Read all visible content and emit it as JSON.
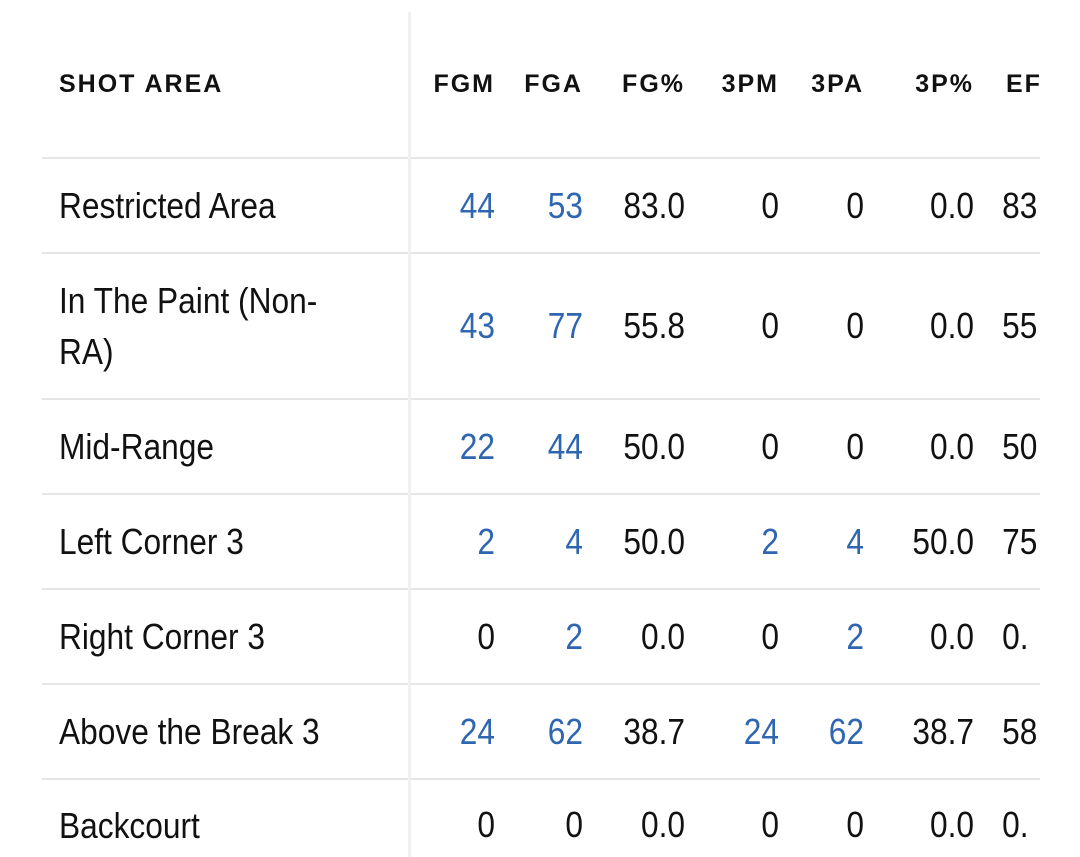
{
  "table": {
    "headers": {
      "area": "SHOT AREA",
      "fgm": "FGM",
      "fga": "FGA",
      "fgp": "FG%",
      "tpm": "3PM",
      "tpa": "3PA",
      "tpp": "3P%",
      "efg": "EFG"
    },
    "rows": [
      {
        "area": "Restricted Area",
        "fgm": "44",
        "fga": "53",
        "fgp": "83.0",
        "tpm": "0",
        "tpa": "0",
        "tpp": "0.0",
        "efg": "83."
      },
      {
        "area": "In The Paint (Non-RA)",
        "fgm": "43",
        "fga": "77",
        "fgp": "55.8",
        "tpm": "0",
        "tpa": "0",
        "tpp": "0.0",
        "efg": "55."
      },
      {
        "area": "Mid-Range",
        "fgm": "22",
        "fga": "44",
        "fgp": "50.0",
        "tpm": "0",
        "tpa": "0",
        "tpp": "0.0",
        "efg": "50."
      },
      {
        "area": "Left Corner 3",
        "fgm": "2",
        "fga": "4",
        "fgp": "50.0",
        "tpm": "2",
        "tpa": "4",
        "tpp": "50.0",
        "efg": "75."
      },
      {
        "area": "Right Corner 3",
        "fgm": "0",
        "fga": "2",
        "fgp": "0.0",
        "tpm": "0",
        "tpa": "2",
        "tpp": "0.0",
        "efg": "0."
      },
      {
        "area": "Above the Break 3",
        "fgm": "24",
        "fga": "62",
        "fgp": "38.7",
        "tpm": "24",
        "tpa": "62",
        "tpp": "38.7",
        "efg": "58."
      },
      {
        "area": "Backcourt",
        "fgm": "0",
        "fga": "0",
        "fgp": "0.0",
        "tpm": "0",
        "tpa": "0",
        "tpp": "0.0",
        "efg": "0."
      }
    ]
  },
  "colors": {
    "link": "#2e66b0",
    "text": "#111111",
    "divider": "#e6e6e6"
  }
}
